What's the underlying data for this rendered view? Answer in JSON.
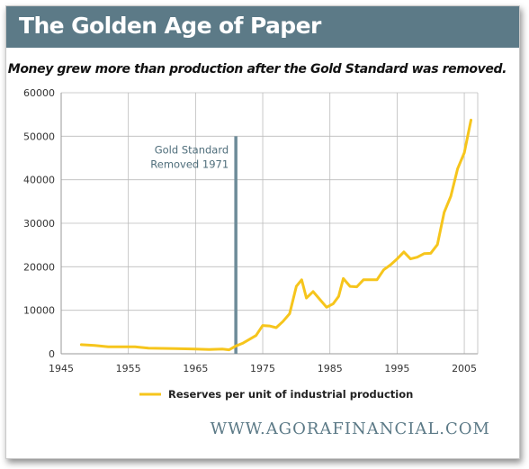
{
  "title": "The Golden Age of Paper",
  "subtitle": "Money grew more than production after the Gold Standard was removed.",
  "website": "WWW.AGORAFINANCIAL.COM",
  "colors": {
    "header": "#5c7a87",
    "line": "#f6c51c",
    "marker": "#6e8c99",
    "grid": "#bbbbbb"
  },
  "chart_data": {
    "type": "line",
    "title": "The Golden Age of Paper",
    "subtitle": "Money grew more than production after the Gold Standard was removed.",
    "xlabel": "",
    "ylabel": "",
    "xlim": [
      1945,
      2007
    ],
    "ylim": [
      0,
      60000
    ],
    "x_ticks": [
      "1945",
      "1955",
      "1965",
      "1975",
      "1985",
      "1995",
      "2005"
    ],
    "y_ticks": [
      "0",
      "10000",
      "20000",
      "30000",
      "40000",
      "50000",
      "60000"
    ],
    "grid": true,
    "legend_position": "bottom",
    "annotation": {
      "lines": [
        "Gold Standard",
        "Removed 1971"
      ],
      "x": 1971
    },
    "series": [
      {
        "name": "Reserves per unit of industrial production",
        "color": "#f6c51c",
        "points": [
          [
            1948,
            2100
          ],
          [
            1950,
            1900
          ],
          [
            1952,
            1600
          ],
          [
            1956,
            1600
          ],
          [
            1958,
            1300
          ],
          [
            1962,
            1200
          ],
          [
            1965,
            1100
          ],
          [
            1967,
            1000
          ],
          [
            1969,
            1100
          ],
          [
            1970,
            900
          ],
          [
            1971,
            1800
          ],
          [
            1972,
            2400
          ],
          [
            1973,
            3300
          ],
          [
            1974,
            4200
          ],
          [
            1975,
            6500
          ],
          [
            1976,
            6400
          ],
          [
            1977,
            6000
          ],
          [
            1978,
            7400
          ],
          [
            1979,
            9200
          ],
          [
            1980,
            15500
          ],
          [
            1980.8,
            17000
          ],
          [
            1981.5,
            12800
          ],
          [
            1982.5,
            14300
          ],
          [
            1983.5,
            12500
          ],
          [
            1984.5,
            10700
          ],
          [
            1985.5,
            11500
          ],
          [
            1986.3,
            13200
          ],
          [
            1987,
            17300
          ],
          [
            1988,
            15500
          ],
          [
            1989,
            15400
          ],
          [
            1990,
            17000
          ],
          [
            1991,
            17000
          ],
          [
            1992,
            17000
          ],
          [
            1993,
            19300
          ],
          [
            1994,
            20400
          ],
          [
            1995,
            21800
          ],
          [
            1996,
            23400
          ],
          [
            1997,
            21800
          ],
          [
            1998,
            22200
          ],
          [
            1999,
            23000
          ],
          [
            2000,
            23100
          ],
          [
            2001,
            25100
          ],
          [
            2002,
            32500
          ],
          [
            2003,
            36200
          ],
          [
            2004,
            42500
          ],
          [
            2005,
            46200
          ],
          [
            2006,
            53700
          ]
        ]
      }
    ]
  }
}
